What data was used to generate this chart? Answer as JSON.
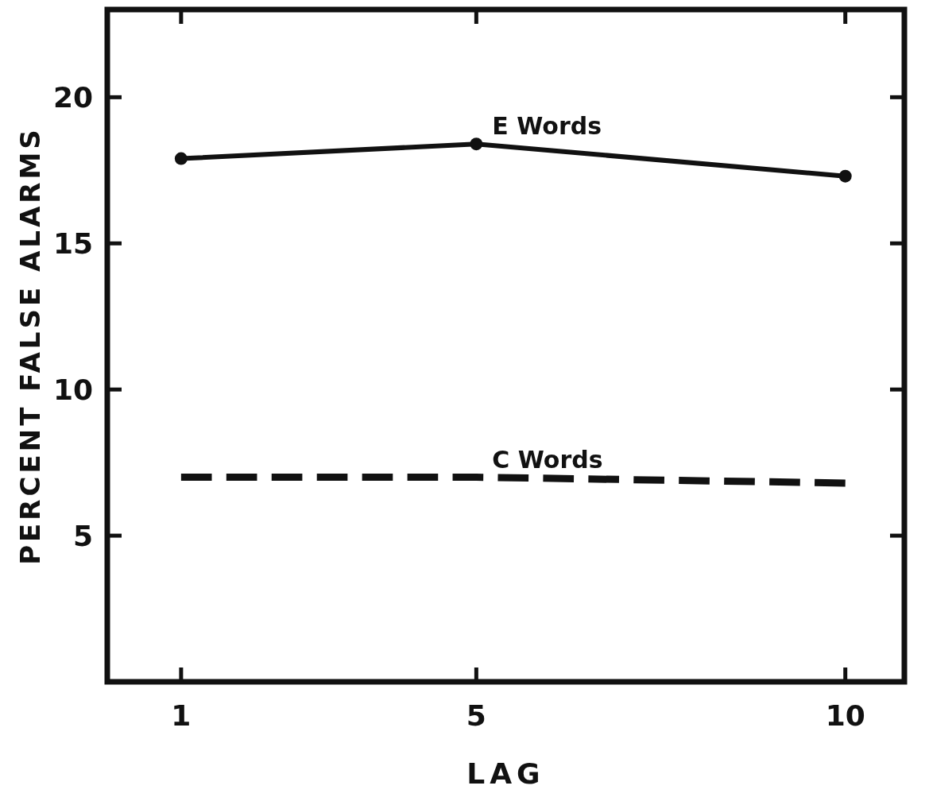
{
  "chart_data": {
    "type": "line",
    "xlabel": "LAG",
    "ylabel": "PERCENT FALSE ALARMS",
    "x": [
      1,
      5,
      10
    ],
    "xlim": [
      0,
      10.8
    ],
    "xticks": [
      1,
      5,
      10
    ],
    "ylim": [
      0,
      23
    ],
    "yticks": [
      5,
      10,
      15,
      20
    ],
    "grid": false,
    "series": [
      {
        "name": "E Words",
        "color": "#111111",
        "values": [
          17.9,
          18.4,
          17.3
        ],
        "marker": "circle",
        "line_style": "solid"
      },
      {
        "name": "C Words",
        "color": "#111111",
        "values": [
          7.0,
          7.0,
          6.8
        ],
        "marker": "none",
        "line_style": "dashed"
      }
    ]
  }
}
